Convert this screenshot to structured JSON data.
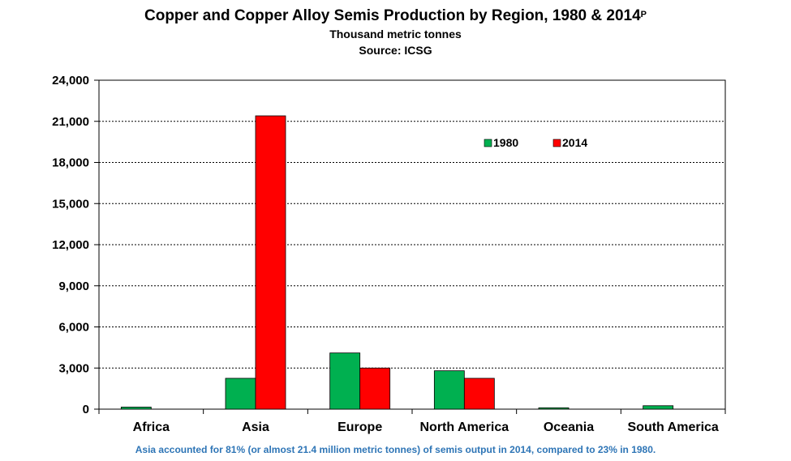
{
  "chart_data": {
    "type": "bar",
    "title": "Copper and Copper Alloy Semis Production by Region, 1980 & 2014",
    "title_superscript": "P",
    "subtitle_lines": [
      "Thousand metric tonnes",
      "Source: ICSG"
    ],
    "categories": [
      "Africa",
      "Asia",
      "Europe",
      "North America",
      "Oceania",
      "South America"
    ],
    "series": [
      {
        "name": "1980",
        "color": "#00b050",
        "values": [
          150,
          2250,
          4100,
          2800,
          100,
          250
        ]
      },
      {
        "name": "2014",
        "color": "#ff0000",
        "values": [
          0,
          21400,
          3000,
          2250,
          0,
          0
        ]
      }
    ],
    "ylim": [
      0,
      24000
    ],
    "yticks": [
      0,
      3000,
      6000,
      9000,
      12000,
      15000,
      18000,
      21000,
      24000
    ],
    "ytick_labels": [
      "0",
      "3,000",
      "6,000",
      "9,000",
      "12,000",
      "15,000",
      "18,000",
      "21,000",
      "24,000"
    ],
    "grid": true,
    "legend_position": "top-right",
    "footnote": "Asia accounted for 81% (or almost 21.4 million metric tonnes) of semis output in 2014, compared to 23% in 1980."
  }
}
